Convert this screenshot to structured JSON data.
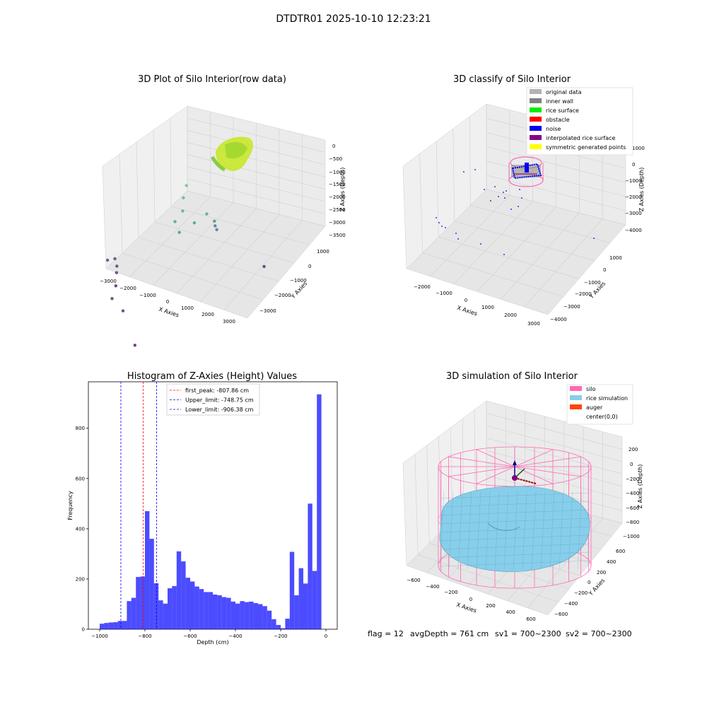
{
  "figure_title": "DTDTR01 2025-10-10 12:23:21",
  "chart_data": [
    {
      "type": "scatter",
      "title": "3D Plot of Silo Interior(row data)",
      "xlabel": "X Axies",
      "ylabel": "Y Axies",
      "zlabel": "Z Axies (Depth)",
      "xticks": [
        "−3000",
        "−2000",
        "−1000",
        "0",
        "1000",
        "2000",
        "3000"
      ],
      "yticks": [
        "1000",
        "0",
        "−1000",
        "−2000",
        "−3000"
      ],
      "zticks": [
        "0",
        "−500",
        "−1000",
        "−1500",
        "−2000",
        "−2500",
        "−3000",
        "−3500"
      ],
      "grid": true,
      "points": [
        {
          "x": 3,
          "y": 0,
          "z": 0
        },
        {
          "x": -2500,
          "y": -800,
          "z": -3100
        },
        {
          "x": -2300,
          "y": -700,
          "z": -3100
        },
        {
          "x": -2100,
          "y": -800,
          "z": -3200
        },
        {
          "x": -2000,
          "y": -900,
          "z": -3300
        },
        {
          "x": -1800,
          "y": -1100,
          "z": -3500
        },
        {
          "x": -1500,
          "y": -1500,
          "z": -3400
        },
        {
          "x": -800,
          "y": -1700,
          "z": -3400
        },
        {
          "x": 400,
          "y": -2300,
          "z": -3600
        },
        {
          "x": 2600,
          "y": 600,
          "z": -3400
        },
        {
          "x": -500,
          "y": 400,
          "z": -1000
        },
        {
          "x": -400,
          "y": 200,
          "z": -1200
        },
        {
          "x": -200,
          "y": 0,
          "z": -1400
        },
        {
          "x": -300,
          "y": -200,
          "z": -1600
        },
        {
          "x": 0,
          "y": -300,
          "z": -1800
        },
        {
          "x": 300,
          "y": 0,
          "z": -1700
        },
        {
          "x": 600,
          "y": 200,
          "z": -1500
        },
        {
          "x": 700,
          "y": 400,
          "z": -2000
        },
        {
          "x": 800,
          "y": 400,
          "z": -2300
        },
        {
          "x": 500,
          "y": 600,
          "z": -2500
        }
      ]
    },
    {
      "type": "scatter",
      "title": "3D classify of Silo Interior",
      "xlabel": "X Axies",
      "ylabel": "Y Axies",
      "zlabel": "Z Axies (Depth)",
      "xticks": [
        "−2000",
        "−1000",
        "0",
        "1000",
        "2000",
        "3000"
      ],
      "yticks": [
        "1000",
        "0",
        "−1000",
        "−2000",
        "−3000",
        "−4000"
      ],
      "zticks": [
        "1000",
        "0",
        "−1000",
        "−2000",
        "−3000",
        "−4000"
      ],
      "grid": true,
      "legend_position": "top-right",
      "legend": [
        {
          "label": "original data",
          "color": "#b3b3b3"
        },
        {
          "label": "inner wall",
          "color": "#808080"
        },
        {
          "label": "rice surface",
          "color": "#00ee00"
        },
        {
          "label": "obstacle",
          "color": "#ff0000"
        },
        {
          "label": "noise",
          "color": "#0000ee"
        },
        {
          "label": "interpolated rice surface",
          "color": "#880088"
        },
        {
          "label": "symmetric generated points",
          "color": "#ffff00"
        }
      ]
    },
    {
      "type": "bar",
      "title": "Histogram of Z-Axies (Height) Values",
      "xlabel": "Depth (cm)",
      "ylabel": "Frequency",
      "xlim": [
        -1050,
        50
      ],
      "ylim": [
        0,
        985
      ],
      "xticks": [
        -1000,
        -800,
        -600,
        -400,
        -200,
        0
      ],
      "yticks": [
        0,
        200,
        400,
        600,
        800
      ],
      "bin_width": 20,
      "bin_starts": [
        -1000,
        -980,
        -960,
        -940,
        -920,
        -900,
        -880,
        -860,
        -840,
        -820,
        -800,
        -780,
        -760,
        -740,
        -720,
        -700,
        -680,
        -660,
        -640,
        -620,
        -600,
        -580,
        -560,
        -540,
        -520,
        -500,
        -480,
        -460,
        -440,
        -420,
        -400,
        -380,
        -360,
        -340,
        -320,
        -300,
        -280,
        -260,
        -240,
        -220,
        -200,
        -180,
        -160,
        -140,
        -120,
        -100,
        -80,
        -60,
        -40,
        -20
      ],
      "values": [
        22,
        25,
        27,
        28,
        33,
        33,
        112,
        125,
        208,
        210,
        470,
        360,
        183,
        115,
        102,
        163,
        172,
        310,
        270,
        205,
        190,
        170,
        160,
        148,
        148,
        138,
        135,
        128,
        125,
        110,
        102,
        112,
        108,
        110,
        104,
        100,
        92,
        74,
        40,
        17,
        4,
        42,
        308,
        135,
        243,
        182,
        500,
        232,
        935,
        0
      ],
      "bar_color": "#0000ff",
      "lines": [
        {
          "label": "first_peak: -807.86 cm",
          "x": -807.86,
          "color": "#ff0000"
        },
        {
          "label": "Upper_limit: -748.75 cm",
          "x": -748.75,
          "color": "#0000ff"
        },
        {
          "label": "Lower_limit: -906.38 cm",
          "x": -906.38,
          "color": "#0000ff"
        }
      ],
      "legend_position": "top-center"
    },
    {
      "type": "surface",
      "title": "3D simulation of Silo Interior",
      "xlabel": "X Axies",
      "ylabel": "Y Axies",
      "zlabel": "Z Axies (Depth)",
      "xticks": [
        "−600",
        "−400",
        "−200",
        "0",
        "200",
        "400",
        "600"
      ],
      "yticks": [
        "600",
        "400",
        "200",
        "0",
        "−200",
        "−400",
        "−600"
      ],
      "zticks": [
        "200",
        "0",
        "−200",
        "−400",
        "−600",
        "−800",
        "−1000"
      ],
      "grid": true,
      "legend_position": "top-right",
      "legend": [
        {
          "label": "silo",
          "color": "#ff69b4"
        },
        {
          "label": "rice simulation",
          "color": "#87ceeb"
        },
        {
          "label": "auger",
          "color": "#ff4500"
        },
        {
          "label": "center(0,0)",
          "color": "#ffffff"
        }
      ]
    }
  ],
  "footer": {
    "flag": "flag = 12",
    "avg_depth": "avgDepth = 761 cm",
    "sv1": "sv1 = 700~2300",
    "sv2": "sv2 = 700~2300"
  }
}
